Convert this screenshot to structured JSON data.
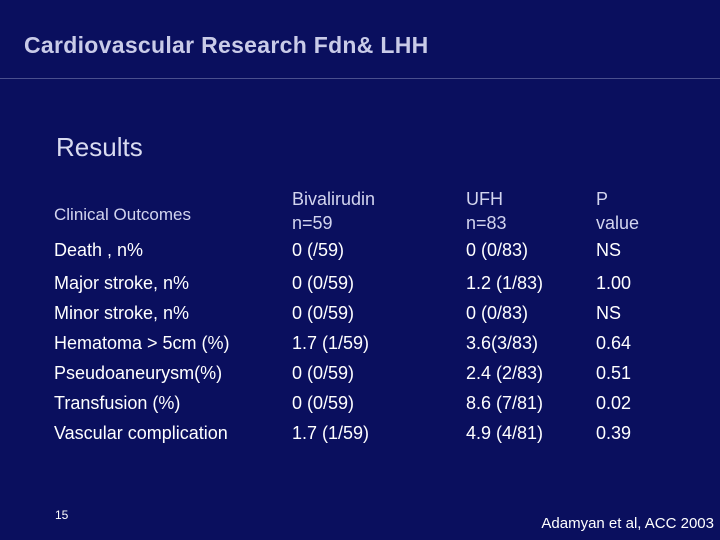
{
  "header": {
    "title": "Cardiovascular Research Fdn& LHH"
  },
  "section": {
    "title": "Results"
  },
  "table": {
    "headers": {
      "outcome": "Clinical Outcomes",
      "bival_line1": "Bivalirudin",
      "bival_line2": "n=59",
      "ufh_line1": "UFH",
      "ufh_line2": "n=83",
      "p_line1": "P",
      "p_line2": "value"
    },
    "rows": [
      {
        "outcome": "Death , n%",
        "bival": "0 (/59)",
        "ufh": "0 (0/83)",
        "p": "NS"
      },
      {
        "outcome": "Major stroke, n%",
        "bival": "0 (0/59)",
        "ufh": "1.2 (1/83)",
        "p": "1.00"
      },
      {
        "outcome": "Minor stroke, n%",
        "bival": "0 (0/59)",
        "ufh": "0 (0/83)",
        "p": "NS"
      },
      {
        "outcome": "Hematoma > 5cm (%)",
        "bival": "1.7 (1/59)",
        "ufh": "3.6(3/83)",
        "p": "0.64"
      },
      {
        "outcome": "Pseudoaneurysm(%)",
        "bival": "0 (0/59)",
        "ufh": "2.4 (2/83)",
        "p": "0.51"
      },
      {
        "outcome": "Transfusion (%)",
        "bival": "0 (0/59)",
        "ufh": "8.6 (7/81)",
        "p": "0.02"
      },
      {
        "outcome": "Vascular complication",
        "bival": "1.7 (1/59)",
        "ufh": "4.9 (4/81)",
        "p": "0.39"
      }
    ]
  },
  "footer": {
    "slide_number": "15",
    "citation": "Adamyan et al, ACC 2003"
  }
}
